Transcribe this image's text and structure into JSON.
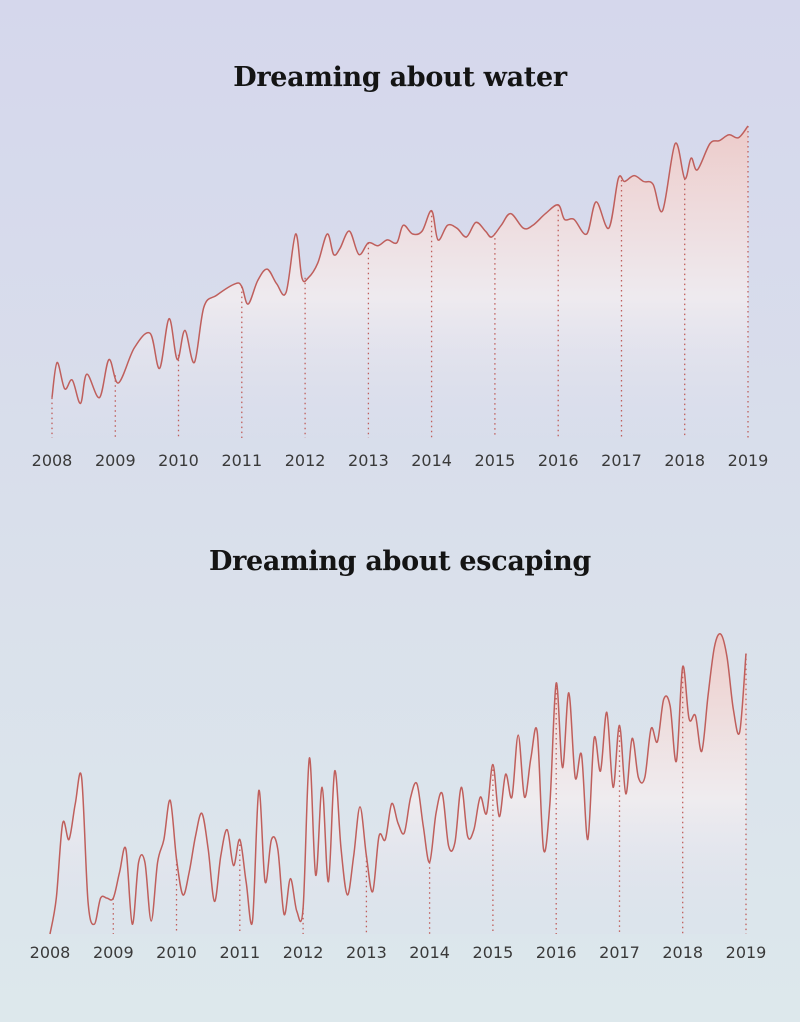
{
  "colors": {
    "line": "#bf5f5c",
    "fill_top": "#f1c9c4",
    "fill_bottom": "#d9dcec"
  },
  "chart_data": [
    {
      "type": "area",
      "title": "Dreaming about water",
      "x_ticks": [
        "2008",
        "2009",
        "2010",
        "2011",
        "2012",
        "2013",
        "2014",
        "2015",
        "2016",
        "2017",
        "2018",
        "2019"
      ],
      "xlim": [
        2008,
        2019
      ],
      "ylim": [
        0,
        100
      ],
      "grid": "dotted vertical year markers",
      "x": [
        2008.0,
        2008.08,
        2008.2,
        2008.32,
        2008.45,
        2008.55,
        2008.75,
        2008.9,
        2009.05,
        2009.3,
        2009.55,
        2009.7,
        2009.85,
        2009.98,
        2010.1,
        2010.25,
        2010.4,
        2010.6,
        2010.9,
        2011.0,
        2011.1,
        2011.25,
        2011.4,
        2011.55,
        2011.7,
        2011.85,
        2011.95,
        2012.05,
        2012.2,
        2012.35,
        2012.45,
        2012.55,
        2012.7,
        2012.85,
        2013.0,
        2013.15,
        2013.3,
        2013.45,
        2013.55,
        2013.7,
        2013.85,
        2014.0,
        2014.1,
        2014.25,
        2014.4,
        2014.55,
        2014.7,
        2014.85,
        2014.95,
        2015.1,
        2015.25,
        2015.45,
        2015.6,
        2015.8,
        2016.0,
        2016.1,
        2016.25,
        2016.45,
        2016.6,
        2016.8,
        2016.95,
        2017.05,
        2017.2,
        2017.35,
        2017.5,
        2017.65,
        2017.85,
        2018.0,
        2018.1,
        2018.2,
        2018.4,
        2018.55,
        2018.7,
        2018.85,
        2019.0
      ],
      "values": [
        7,
        19,
        10,
        13,
        5,
        15,
        7,
        20,
        12,
        24,
        29,
        17,
        34,
        20,
        30,
        19,
        38,
        42,
        46,
        45,
        39,
        47,
        51,
        46,
        43,
        63,
        48,
        48,
        53,
        63,
        56,
        58,
        64,
        56,
        60,
        59,
        61,
        60,
        66,
        63,
        64,
        71,
        61,
        66,
        65,
        62,
        67,
        64,
        62,
        66,
        70,
        65,
        66,
        70,
        73,
        68,
        68,
        63,
        74,
        65,
        82,
        81,
        83,
        81,
        80,
        71,
        94,
        82,
        89,
        85,
        94,
        95,
        97,
        96,
        100
      ]
    },
    {
      "type": "area",
      "title": "Dreaming about escaping",
      "x_ticks": [
        "2008",
        "2009",
        "2010",
        "2011",
        "2012",
        "2013",
        "2014",
        "2015",
        "2016",
        "2017",
        "2018",
        "2019"
      ],
      "xlim": [
        2008,
        2019
      ],
      "ylim": [
        0,
        100
      ],
      "grid": "dotted vertical year markers",
      "x": [
        2008.0,
        2008.1,
        2008.2,
        2008.3,
        2008.4,
        2008.5,
        2008.6,
        2008.7,
        2008.8,
        2008.9,
        2009.0,
        2009.1,
        2009.2,
        2009.3,
        2009.4,
        2009.5,
        2009.6,
        2009.7,
        2009.8,
        2009.9,
        2010.0,
        2010.1,
        2010.2,
        2010.3,
        2010.4,
        2010.5,
        2010.6,
        2010.7,
        2010.8,
        2010.9,
        2011.0,
        2011.1,
        2011.2,
        2011.3,
        2011.4,
        2011.5,
        2011.6,
        2011.7,
        2011.8,
        2011.9,
        2012.0,
        2012.1,
        2012.2,
        2012.3,
        2012.4,
        2012.5,
        2012.6,
        2012.7,
        2012.8,
        2012.9,
        2013.0,
        2013.1,
        2013.2,
        2013.3,
        2013.4,
        2013.5,
        2013.6,
        2013.7,
        2013.8,
        2013.9,
        2014.0,
        2014.1,
        2014.2,
        2014.3,
        2014.4,
        2014.5,
        2014.6,
        2014.7,
        2014.8,
        2014.9,
        2015.0,
        2015.1,
        2015.2,
        2015.3,
        2015.4,
        2015.5,
        2015.6,
        2015.7,
        2015.8,
        2015.9,
        2016.0,
        2016.1,
        2016.2,
        2016.3,
        2016.4,
        2016.5,
        2016.6,
        2016.7,
        2016.8,
        2016.9,
        2017.0,
        2017.1,
        2017.2,
        2017.3,
        2017.4,
        2017.5,
        2017.6,
        2017.7,
        2017.8,
        2017.9,
        2018.0,
        2018.1,
        2018.2,
        2018.3,
        2018.4,
        2018.5,
        2018.6,
        2018.7,
        2018.8,
        2018.9,
        2019.0
      ],
      "values": [
        0,
        11,
        34,
        29,
        40,
        48,
        10,
        3,
        11,
        11,
        11,
        19,
        26,
        3,
        22,
        22,
        4,
        22,
        29,
        41,
        23,
        12,
        19,
        30,
        37,
        26,
        10,
        24,
        32,
        21,
        29,
        16,
        4,
        44,
        16,
        29,
        26,
        6,
        17,
        7,
        8,
        54,
        18,
        45,
        16,
        50,
        26,
        12,
        24,
        39,
        24,
        13,
        30,
        29,
        40,
        34,
        31,
        42,
        46,
        33,
        22,
        37,
        43,
        27,
        28,
        45,
        30,
        32,
        42,
        37,
        52,
        36,
        49,
        42,
        61,
        42,
        54,
        62,
        26,
        40,
        77,
        51,
        74,
        48,
        55,
        29,
        60,
        50,
        68,
        45,
        64,
        43,
        60,
        48,
        48,
        63,
        59,
        72,
        70,
        53,
        82,
        66,
        67,
        56,
        73,
        88,
        92,
        85,
        69,
        62,
        86
      ]
    }
  ]
}
